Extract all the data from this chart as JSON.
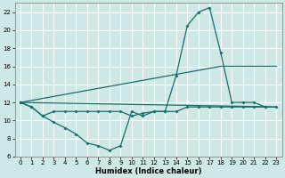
{
  "bg_color": "#cde8e5",
  "grid_color": "#b8d8d4",
  "line_color": "#1a6b6b",
  "xlabel": "Humidex (Indice chaleur)",
  "xlim": [
    -0.5,
    23.5
  ],
  "ylim": [
    6,
    23
  ],
  "yticks": [
    6,
    8,
    10,
    12,
    14,
    16,
    18,
    20,
    22
  ],
  "xticks": [
    0,
    1,
    2,
    3,
    4,
    5,
    6,
    7,
    8,
    9,
    10,
    11,
    12,
    13,
    14,
    15,
    16,
    17,
    18,
    19,
    20,
    21,
    22,
    23
  ],
  "series": [
    {
      "x": [
        0,
        1,
        2,
        3,
        4,
        5,
        6,
        7,
        8,
        9,
        10,
        11,
        12,
        13,
        14,
        15,
        16,
        17,
        18,
        19,
        20,
        21,
        22
      ],
      "y": [
        12,
        11.5,
        10.5,
        9.8,
        9.2,
        8.5,
        7.5,
        7.2,
        6.7,
        7.2,
        11,
        10.5,
        11,
        11,
        15,
        20.5,
        22,
        22.5,
        17.5,
        12,
        12,
        12,
        11.5
      ],
      "markers": true
    },
    {
      "x": [
        0,
        1,
        2,
        3,
        4,
        5,
        6,
        7,
        8,
        9,
        10,
        11,
        12,
        13,
        14,
        15,
        16,
        17,
        18,
        19,
        20,
        21,
        22,
        23
      ],
      "y": [
        12,
        11.5,
        10.5,
        11,
        11,
        11,
        11,
        11,
        11,
        11,
        10.5,
        10.8,
        11,
        11,
        11,
        11.5,
        11.5,
        11.5,
        11.5,
        11.5,
        11.5,
        11.5,
        11.5,
        11.5
      ],
      "markers": true
    },
    {
      "x": [
        0,
        23
      ],
      "y": [
        12,
        11.5
      ],
      "markers": false
    },
    {
      "x": [
        0,
        18,
        23
      ],
      "y": [
        12,
        16,
        16
      ],
      "markers": false
    }
  ]
}
